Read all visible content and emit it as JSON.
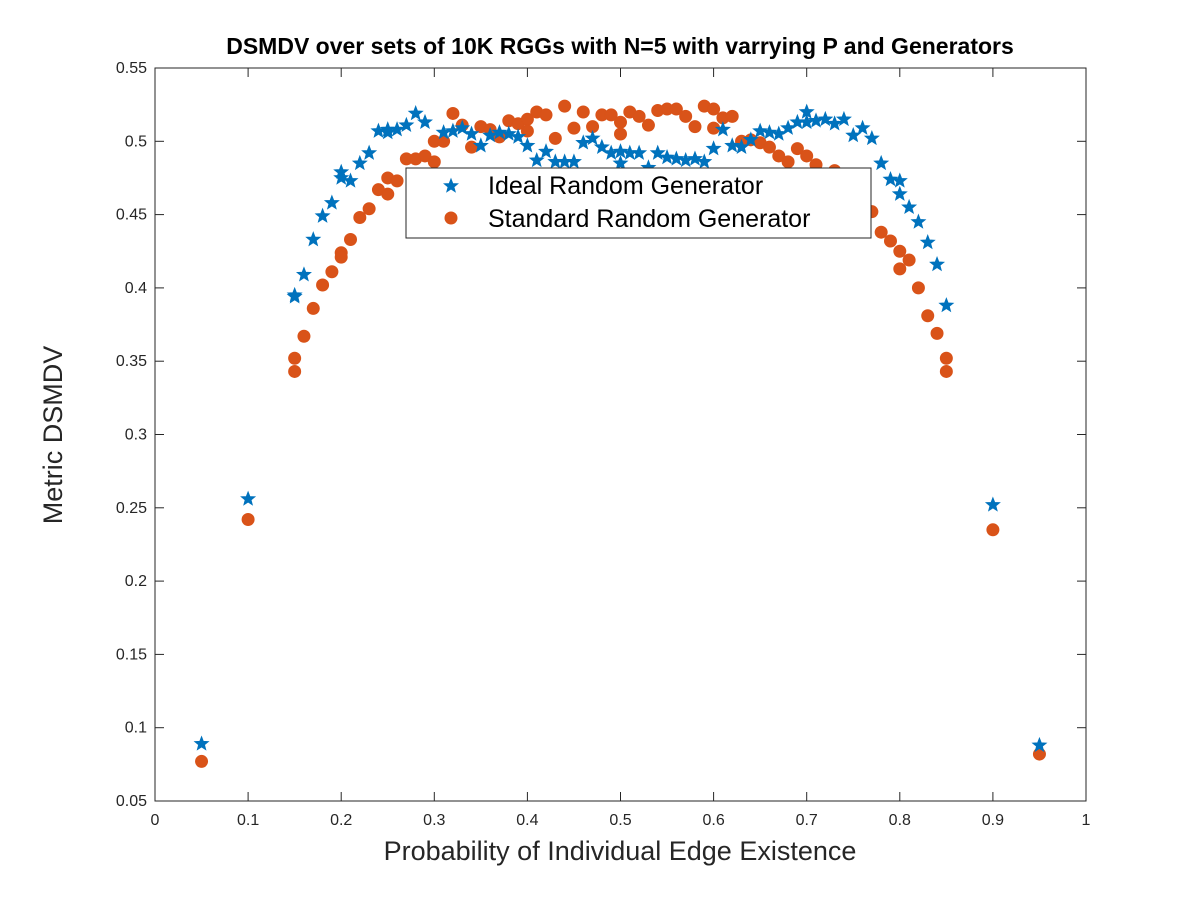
{
  "chart_data": {
    "type": "scatter",
    "title": "DSMDV over sets of 10K RGGs with N=5 with varrying P and Generators",
    "xlabel": "Probability of Individual Edge Existence",
    "ylabel": "Metric DSMDV",
    "xlim": [
      0,
      1
    ],
    "ylim": [
      0.05,
      0.55
    ],
    "xticks": [
      "0",
      "0.1",
      "0.2",
      "0.3",
      "0.4",
      "0.5",
      "0.6",
      "0.7",
      "0.8",
      "0.9",
      "1"
    ],
    "yticks": [
      "0.05",
      "0.1",
      "0.15",
      "0.2",
      "0.25",
      "0.3",
      "0.35",
      "0.4",
      "0.45",
      "0.5",
      "0.55"
    ],
    "legend_position": "top-center",
    "series": [
      {
        "name": "Ideal Random Generator",
        "marker": "star",
        "color": "#0072BD",
        "points": [
          [
            0.05,
            0.089
          ],
          [
            0.1,
            0.256
          ],
          [
            0.15,
            0.395
          ],
          [
            0.15,
            0.394
          ],
          [
            0.16,
            0.409
          ],
          [
            0.17,
            0.433
          ],
          [
            0.18,
            0.449
          ],
          [
            0.19,
            0.458
          ],
          [
            0.2,
            0.479
          ],
          [
            0.2,
            0.475
          ],
          [
            0.21,
            0.473
          ],
          [
            0.22,
            0.485
          ],
          [
            0.23,
            0.492
          ],
          [
            0.24,
            0.507
          ],
          [
            0.25,
            0.506
          ],
          [
            0.25,
            0.508
          ],
          [
            0.26,
            0.508
          ],
          [
            0.27,
            0.511
          ],
          [
            0.28,
            0.519
          ],
          [
            0.29,
            0.513
          ],
          [
            0.31,
            0.506
          ],
          [
            0.32,
            0.507
          ],
          [
            0.33,
            0.509
          ],
          [
            0.34,
            0.505
          ],
          [
            0.35,
            0.497
          ],
          [
            0.36,
            0.504
          ],
          [
            0.37,
            0.506
          ],
          [
            0.38,
            0.505
          ],
          [
            0.39,
            0.503
          ],
          [
            0.4,
            0.497
          ],
          [
            0.41,
            0.487
          ],
          [
            0.42,
            0.493
          ],
          [
            0.43,
            0.486
          ],
          [
            0.44,
            0.486
          ],
          [
            0.45,
            0.486
          ],
          [
            0.46,
            0.499
          ],
          [
            0.47,
            0.502
          ],
          [
            0.48,
            0.496
          ],
          [
            0.49,
            0.492
          ],
          [
            0.5,
            0.493
          ],
          [
            0.5,
            0.485
          ],
          [
            0.51,
            0.492
          ],
          [
            0.52,
            0.492
          ],
          [
            0.53,
            0.482
          ],
          [
            0.54,
            0.492
          ],
          [
            0.55,
            0.489
          ],
          [
            0.56,
            0.488
          ],
          [
            0.57,
            0.487
          ],
          [
            0.58,
            0.488
          ],
          [
            0.59,
            0.486
          ],
          [
            0.6,
            0.495
          ],
          [
            0.61,
            0.508
          ],
          [
            0.62,
            0.497
          ],
          [
            0.63,
            0.496
          ],
          [
            0.64,
            0.501
          ],
          [
            0.65,
            0.507
          ],
          [
            0.66,
            0.506
          ],
          [
            0.67,
            0.505
          ],
          [
            0.68,
            0.509
          ],
          [
            0.69,
            0.513
          ],
          [
            0.7,
            0.52
          ],
          [
            0.7,
            0.513
          ],
          [
            0.71,
            0.514
          ],
          [
            0.72,
            0.515
          ],
          [
            0.73,
            0.512
          ],
          [
            0.74,
            0.515
          ],
          [
            0.75,
            0.504
          ],
          [
            0.76,
            0.509
          ],
          [
            0.77,
            0.502
          ],
          [
            0.78,
            0.485
          ],
          [
            0.79,
            0.474
          ],
          [
            0.8,
            0.473
          ],
          [
            0.8,
            0.464
          ],
          [
            0.81,
            0.455
          ],
          [
            0.82,
            0.445
          ],
          [
            0.83,
            0.431
          ],
          [
            0.84,
            0.416
          ],
          [
            0.85,
            0.388
          ],
          [
            0.9,
            0.252
          ],
          [
            0.95,
            0.088
          ]
        ]
      },
      {
        "name": "Standard Random Generator",
        "marker": "circle",
        "color": "#D95319",
        "points": [
          [
            0.05,
            0.077
          ],
          [
            0.1,
            0.242
          ],
          [
            0.15,
            0.352
          ],
          [
            0.15,
            0.343
          ],
          [
            0.16,
            0.367
          ],
          [
            0.17,
            0.386
          ],
          [
            0.18,
            0.402
          ],
          [
            0.19,
            0.411
          ],
          [
            0.2,
            0.424
          ],
          [
            0.2,
            0.421
          ],
          [
            0.21,
            0.433
          ],
          [
            0.22,
            0.448
          ],
          [
            0.23,
            0.454
          ],
          [
            0.24,
            0.467
          ],
          [
            0.25,
            0.475
          ],
          [
            0.25,
            0.464
          ],
          [
            0.26,
            0.473
          ],
          [
            0.27,
            0.488
          ],
          [
            0.28,
            0.488
          ],
          [
            0.29,
            0.49
          ],
          [
            0.3,
            0.486
          ],
          [
            0.3,
            0.5
          ],
          [
            0.31,
            0.5
          ],
          [
            0.32,
            0.519
          ],
          [
            0.33,
            0.511
          ],
          [
            0.34,
            0.496
          ],
          [
            0.35,
            0.51
          ],
          [
            0.36,
            0.508
          ],
          [
            0.37,
            0.503
          ],
          [
            0.38,
            0.514
          ],
          [
            0.39,
            0.512
          ],
          [
            0.4,
            0.515
          ],
          [
            0.4,
            0.507
          ],
          [
            0.41,
            0.52
          ],
          [
            0.42,
            0.518
          ],
          [
            0.43,
            0.502
          ],
          [
            0.44,
            0.524
          ],
          [
            0.45,
            0.509
          ],
          [
            0.46,
            0.52
          ],
          [
            0.47,
            0.51
          ],
          [
            0.48,
            0.518
          ],
          [
            0.49,
            0.518
          ],
          [
            0.5,
            0.513
          ],
          [
            0.5,
            0.505
          ],
          [
            0.51,
            0.52
          ],
          [
            0.52,
            0.517
          ],
          [
            0.53,
            0.511
          ],
          [
            0.54,
            0.521
          ],
          [
            0.55,
            0.522
          ],
          [
            0.56,
            0.522
          ],
          [
            0.57,
            0.517
          ],
          [
            0.58,
            0.51
          ],
          [
            0.59,
            0.524
          ],
          [
            0.6,
            0.522
          ],
          [
            0.6,
            0.509
          ],
          [
            0.61,
            0.516
          ],
          [
            0.62,
            0.517
          ],
          [
            0.63,
            0.5
          ],
          [
            0.64,
            0.501
          ],
          [
            0.65,
            0.499
          ],
          [
            0.66,
            0.496
          ],
          [
            0.67,
            0.49
          ],
          [
            0.68,
            0.486
          ],
          [
            0.69,
            0.495
          ],
          [
            0.7,
            0.49
          ],
          [
            0.71,
            0.484
          ],
          [
            0.72,
            0.477
          ],
          [
            0.73,
            0.48
          ],
          [
            0.77,
            0.452
          ],
          [
            0.78,
            0.438
          ],
          [
            0.79,
            0.432
          ],
          [
            0.8,
            0.425
          ],
          [
            0.8,
            0.413
          ],
          [
            0.81,
            0.419
          ],
          [
            0.82,
            0.4
          ],
          [
            0.83,
            0.381
          ],
          [
            0.84,
            0.369
          ],
          [
            0.85,
            0.352
          ],
          [
            0.85,
            0.343
          ],
          [
            0.9,
            0.235
          ],
          [
            0.95,
            0.082
          ]
        ]
      }
    ]
  }
}
